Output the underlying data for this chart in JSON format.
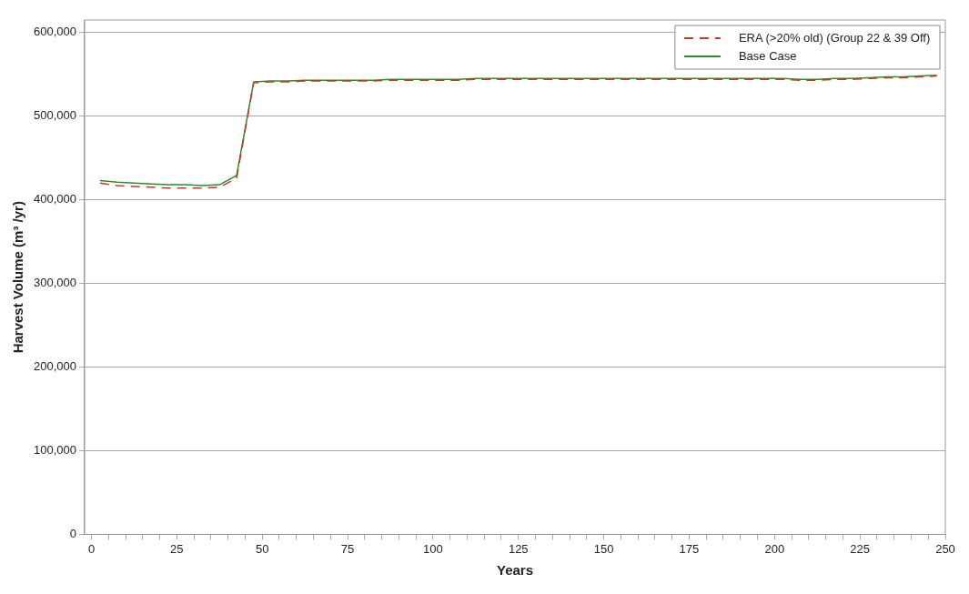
{
  "chart_data": {
    "type": "line",
    "xlabel": "Years",
    "ylabel": "Harvest Volume (m³ /yr)",
    "x": [
      2.5,
      7.5,
      12.5,
      17.5,
      22.5,
      27.5,
      32.5,
      37.5,
      42.5,
      47.5,
      52.5,
      57.5,
      62.5,
      67.5,
      72.5,
      77.5,
      82.5,
      87.5,
      92.5,
      97.5,
      102.5,
      107.5,
      112.5,
      117.5,
      122.5,
      127.5,
      132.5,
      137.5,
      142.5,
      147.5,
      152.5,
      157.5,
      162.5,
      167.5,
      172.5,
      177.5,
      182.5,
      187.5,
      192.5,
      197.5,
      202.5,
      207.5,
      212.5,
      217.5,
      222.5,
      227.5,
      232.5,
      237.5,
      242.5,
      247.5
    ],
    "series": [
      {
        "name": "ERA (>20% old) (Group 22 & 39 Off)",
        "color": "#c0392b",
        "line_style": "dashed",
        "values": [
          420000,
          417000,
          416000,
          415000,
          414000,
          414000,
          414000,
          415000,
          426000,
          540000,
          541000,
          541000,
          542000,
          542000,
          542000,
          542000,
          542000,
          543000,
          543000,
          543000,
          543000,
          543000,
          544000,
          544000,
          544000,
          544000,
          544000,
          544000,
          544000,
          544000,
          544000,
          544000,
          544000,
          544000,
          544000,
          544000,
          544000,
          544000,
          544000,
          544000,
          544000,
          543000,
          543000,
          544000,
          544000,
          545000,
          546000,
          546000,
          547000,
          548000
        ]
      },
      {
        "name": "Base Case",
        "color": "#2e8b2e",
        "line_style": "solid",
        "values": [
          423000,
          421000,
          420000,
          419000,
          418000,
          418000,
          417000,
          418000,
          429000,
          541000,
          542000,
          542000,
          543000,
          543000,
          543000,
          543000,
          543000,
          544000,
          544000,
          544000,
          544000,
          544000,
          545000,
          545000,
          545000,
          545000,
          545000,
          545000,
          545000,
          545000,
          545000,
          545000,
          545000,
          545000,
          545000,
          545000,
          545000,
          545000,
          545000,
          545000,
          545000,
          544000,
          544000,
          545000,
          545000,
          546000,
          547000,
          547000,
          548000,
          549000
        ]
      }
    ],
    "xlim": [
      -2,
      250
    ],
    "xticks": [
      0,
      {
        "value": 5,
        "label": null
      },
      {
        "value": 10,
        "label": null
      },
      {
        "value": 15,
        "label": null
      },
      {
        "value": 20,
        "label": null
      },
      25,
      {
        "value": 30,
        "label": null
      },
      {
        "value": 35,
        "label": null
      },
      {
        "value": 40,
        "label": null
      },
      {
        "value": 45,
        "label": null
      },
      50,
      {
        "value": 55,
        "label": null
      },
      {
        "value": 60,
        "label": null
      },
      {
        "value": 65,
        "label": null
      },
      {
        "value": 70,
        "label": null
      },
      75,
      {
        "value": 80,
        "label": null
      },
      {
        "value": 85,
        "label": null
      },
      {
        "value": 90,
        "label": null
      },
      {
        "value": 95,
        "label": null
      },
      100,
      {
        "value": 105,
        "label": null
      },
      {
        "value": 110,
        "label": null
      },
      {
        "value": 115,
        "label": null
      },
      {
        "value": 120,
        "label": null
      },
      125,
      {
        "value": 130,
        "label": null
      },
      {
        "value": 135,
        "label": null
      },
      {
        "value": 140,
        "label": null
      },
      {
        "value": 145,
        "label": null
      },
      150,
      {
        "value": 155,
        "label": null
      },
      {
        "value": 160,
        "label": null
      },
      {
        "value": 165,
        "label": null
      },
      {
        "value": 170,
        "label": null
      },
      175,
      {
        "value": 180,
        "label": null
      },
      {
        "value": 185,
        "label": null
      },
      {
        "value": 190,
        "label": null
      },
      {
        "value": 195,
        "label": null
      },
      200,
      {
        "value": 205,
        "label": null
      },
      {
        "value": 210,
        "label": null
      },
      {
        "value": 215,
        "label": null
      },
      {
        "value": 220,
        "label": null
      },
      225,
      {
        "value": 230,
        "label": null
      },
      {
        "value": 235,
        "label": null
      },
      {
        "value": 240,
        "label": null
      },
      {
        "value": 245,
        "label": null
      },
      250
    ],
    "ylim": [
      0,
      615000
    ],
    "yticks": [
      0,
      {
        "value": 100000,
        "label": "100,000"
      },
      {
        "value": 200000,
        "label": "200,000"
      },
      {
        "value": 300000,
        "label": "300,000"
      },
      {
        "value": 400000,
        "label": "400,000"
      },
      {
        "value": 500000,
        "label": "500,000"
      },
      {
        "value": 600000,
        "label": "600,000"
      }
    ],
    "grid": "y",
    "legend": "top right",
    "marker": "none"
  }
}
